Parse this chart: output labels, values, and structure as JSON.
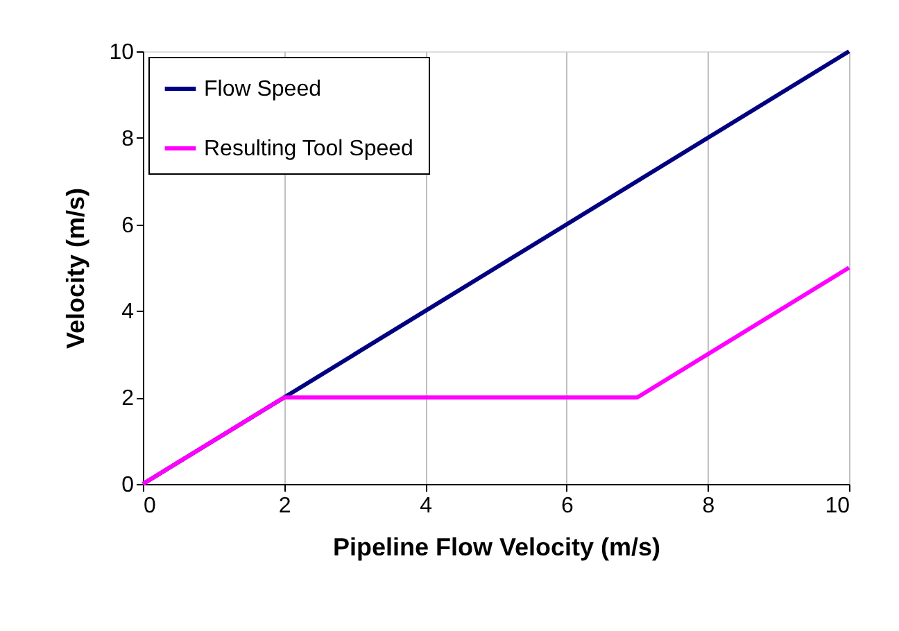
{
  "chart_data": {
    "type": "line",
    "xlabel": "Pipeline Flow Velocity (m/s)",
    "ylabel": "Velocity (m/s)",
    "xlim": [
      0,
      10
    ],
    "ylim": [
      0,
      10
    ],
    "xticks": [
      0,
      2,
      4,
      6,
      8,
      10
    ],
    "yticks": [
      0,
      2,
      4,
      6,
      8,
      10
    ],
    "grid": "x",
    "legend": "top left",
    "marker": "none",
    "line_style": "solid",
    "series": [
      {
        "name": "Flow  Speed",
        "color": "#000080",
        "x": [
          0,
          10
        ],
        "values": [
          0,
          10
        ]
      },
      {
        "name": "Resulting Tool Speed",
        "color": "#ff00ff",
        "x": [
          0,
          2,
          7,
          10
        ],
        "values": [
          0,
          2,
          2,
          5
        ]
      }
    ]
  }
}
